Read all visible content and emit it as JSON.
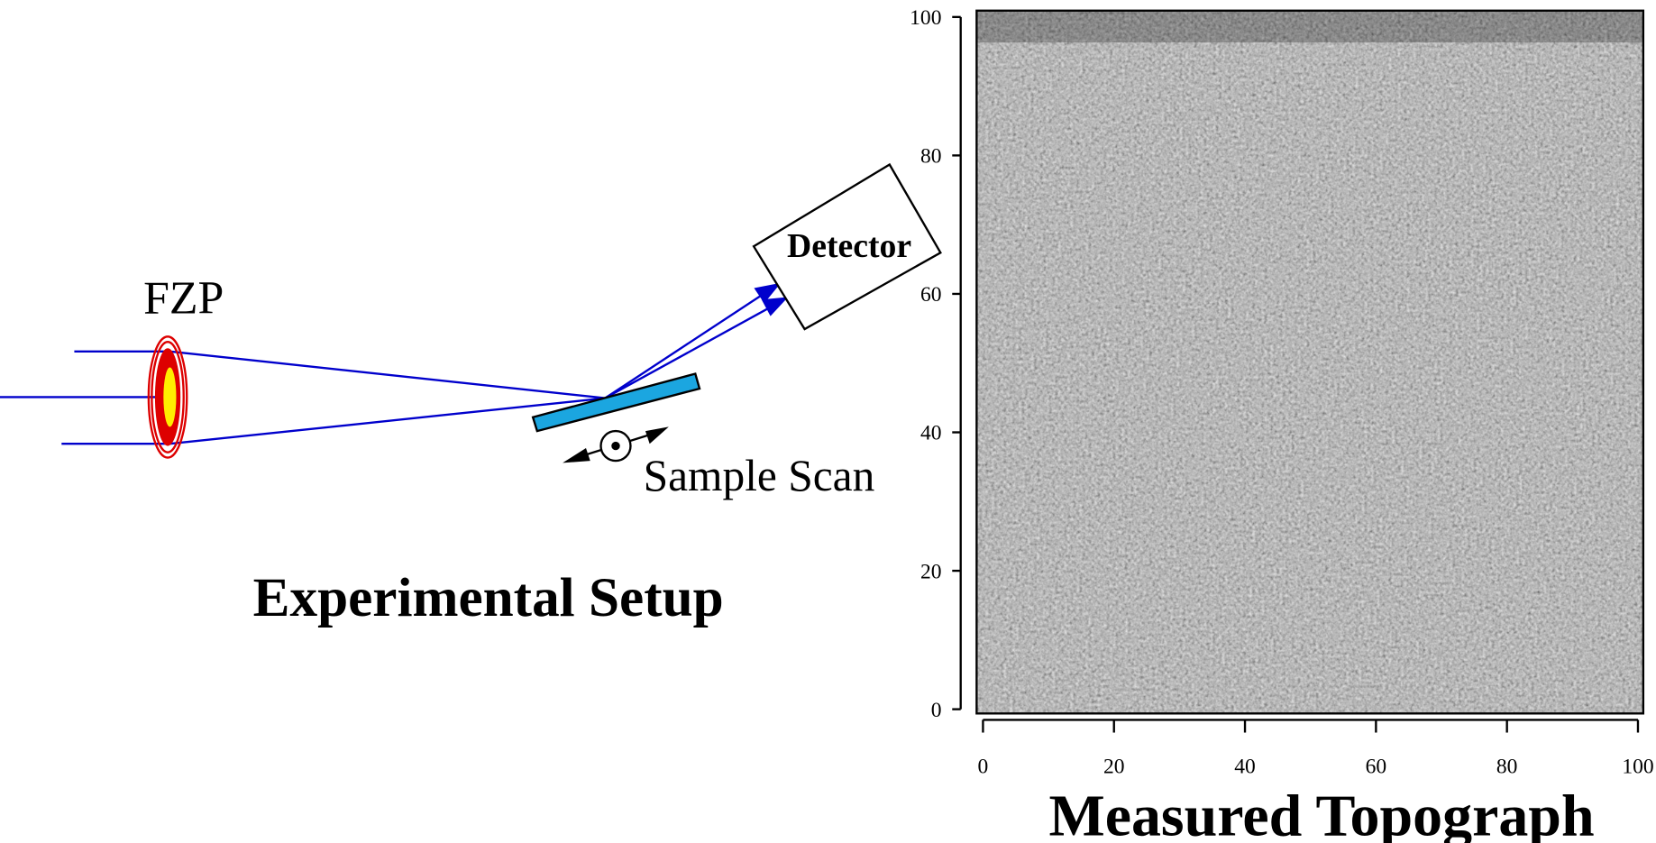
{
  "setup": {
    "title": "Experimental Setup",
    "fzp_label": "FZP",
    "detector_label": "Detector",
    "scan_label": "Sample Scan"
  },
  "topograph": {
    "title": "Measured Topograph",
    "xlim": [
      0,
      100
    ],
    "ylim": [
      0,
      100
    ],
    "xticks": [
      0,
      20,
      40,
      60,
      80,
      100
    ],
    "yticks": [
      0,
      20,
      40,
      60,
      80,
      100
    ]
  }
}
